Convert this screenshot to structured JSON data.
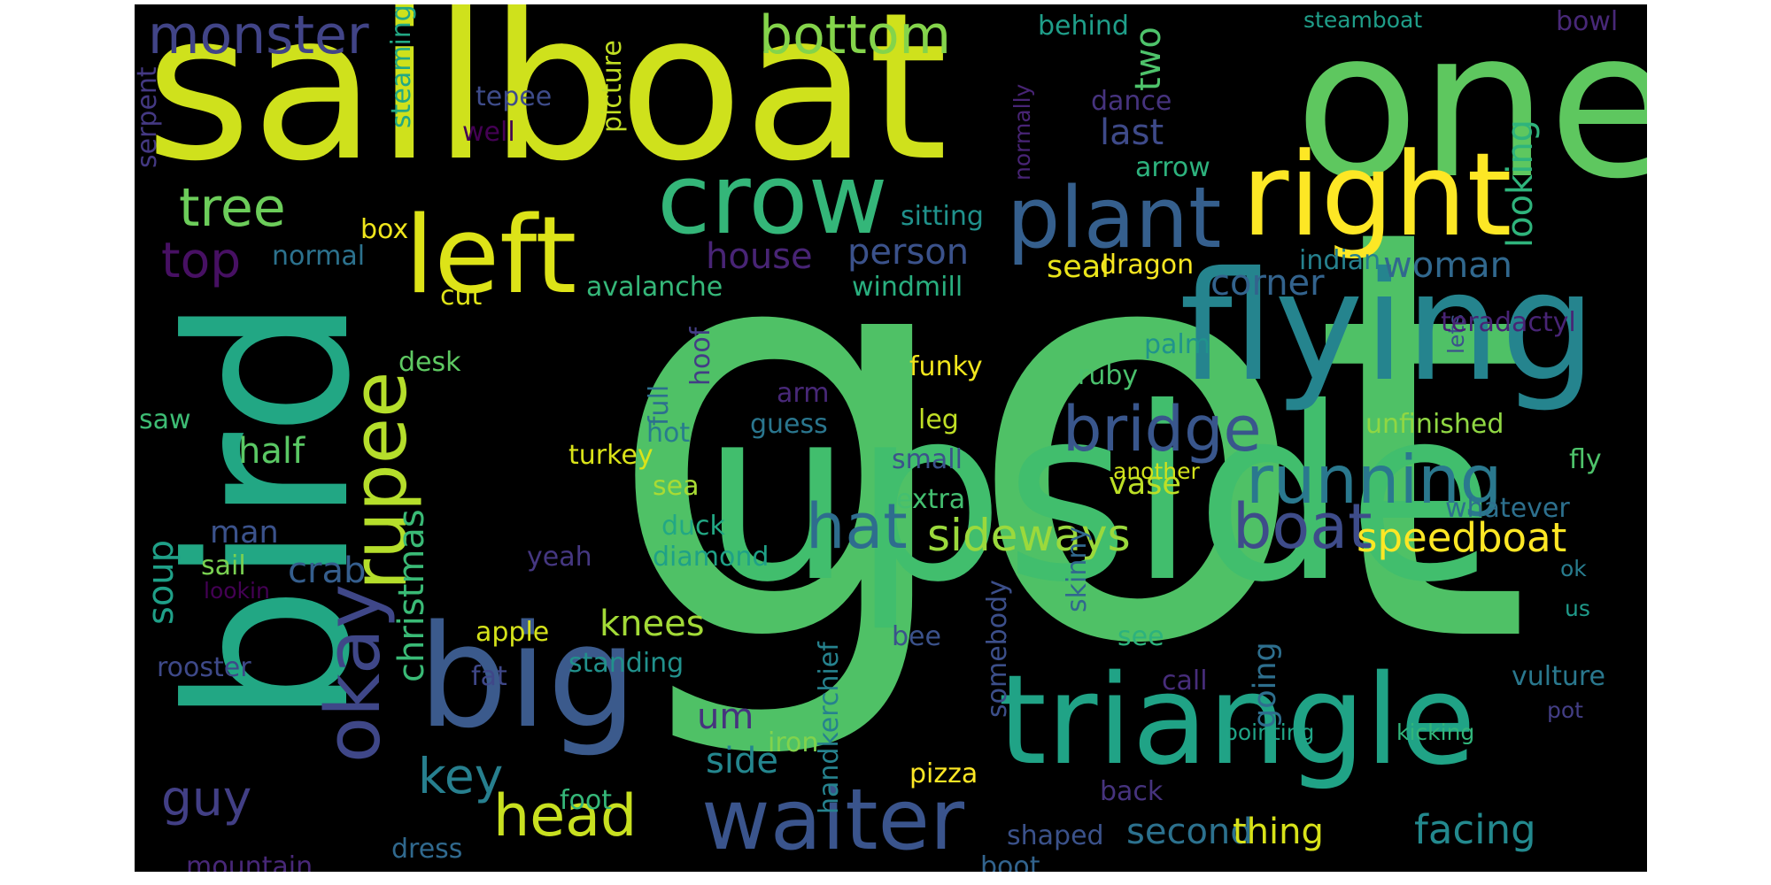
{
  "words": [
    {
      "text": "got",
      "color": "#4fc166"
    },
    {
      "text": "upside",
      "color": "#41be6d"
    },
    {
      "text": "sailboat",
      "color": "#cfe11c"
    },
    {
      "text": "one",
      "color": "#5ec75f"
    },
    {
      "text": "bird",
      "color": "#22a784"
    },
    {
      "text": "big",
      "color": "#3b5a8c"
    },
    {
      "text": "triangle",
      "color": "#20a386"
    },
    {
      "text": "flying",
      "color": "#25848e"
    },
    {
      "text": "crow",
      "color": "#34b679"
    },
    {
      "text": "right",
      "color": "#fde725"
    },
    {
      "text": "left",
      "color": "#dde318"
    },
    {
      "text": "plant",
      "color": "#355f8d"
    },
    {
      "text": "waiter",
      "color": "#3a548c"
    },
    {
      "text": "okay",
      "color": "#3f4788"
    },
    {
      "text": "rupee",
      "color": "#b5de2b"
    },
    {
      "text": "running",
      "color": "#2a788e"
    },
    {
      "text": "bridge",
      "color": "#39568c"
    },
    {
      "text": "boat",
      "color": "#3e4c8a"
    },
    {
      "text": "hat",
      "color": "#2e6d8e"
    },
    {
      "text": "head",
      "color": "#c8e020"
    },
    {
      "text": "monster",
      "color": "#414487"
    },
    {
      "text": "bottom",
      "color": "#84d44b"
    },
    {
      "text": "tree",
      "color": "#6ccd5a"
    },
    {
      "text": "top",
      "color": "#471063"
    },
    {
      "text": "sideways",
      "color": "#9bd93c"
    },
    {
      "text": "speedboat",
      "color": "#fde725"
    },
    {
      "text": "key",
      "color": "#277f8e"
    },
    {
      "text": "guy",
      "color": "#423f85"
    },
    {
      "text": "facing",
      "color": "#23898e"
    },
    {
      "text": "second",
      "color": "#2c718e"
    },
    {
      "text": "thing",
      "color": "#d8e219"
    },
    {
      "text": "person",
      "color": "#3b528b"
    },
    {
      "text": "house",
      "color": "#482475"
    },
    {
      "text": "woman",
      "color": "#31688e"
    },
    {
      "text": "corner",
      "color": "#33638d"
    },
    {
      "text": "knees",
      "color": "#a2da37"
    },
    {
      "text": "vase",
      "color": "#bddf26"
    },
    {
      "text": "half",
      "color": "#5ac864"
    },
    {
      "text": "crab",
      "color": "#355e8d"
    },
    {
      "text": "christmas",
      "color": "#3aba76"
    },
    {
      "text": "soup",
      "color": "#1fa088"
    },
    {
      "text": "um",
      "color": "#46337e"
    },
    {
      "text": "side",
      "color": "#24868e"
    },
    {
      "text": "man",
      "color": "#3b528b"
    },
    {
      "text": "seal",
      "color": "#eae51a"
    },
    {
      "text": "looking",
      "color": "#2fb47c"
    },
    {
      "text": "two",
      "color": "#4ec36b"
    },
    {
      "text": "last",
      "color": "#3e4a89"
    },
    {
      "text": "going",
      "color": "#2e6f8e"
    },
    {
      "text": "unfinished",
      "color": "#90d743"
    },
    {
      "text": "funky",
      "color": "#f1e51d"
    },
    {
      "text": "dragon",
      "color": "#f8e621"
    },
    {
      "text": "windmill",
      "color": "#29af7f"
    },
    {
      "text": "avalanche",
      "color": "#35b779"
    },
    {
      "text": "normal",
      "color": "#2c728e"
    },
    {
      "text": "box",
      "color": "#efe51c"
    },
    {
      "text": "cut",
      "color": "#dfe318"
    },
    {
      "text": "desk",
      "color": "#5ec962"
    },
    {
      "text": "saw",
      "color": "#3dbc74"
    },
    {
      "text": "turkey",
      "color": "#dae319"
    },
    {
      "text": "hot",
      "color": "#287c8e"
    },
    {
      "text": "full",
      "color": "#2d708e"
    },
    {
      "text": "hoof",
      "color": "#433e85"
    },
    {
      "text": "guess",
      "color": "#2a768e"
    },
    {
      "text": "arm",
      "color": "#482878"
    },
    {
      "text": "leg",
      "color": "#c0df25"
    },
    {
      "text": "small",
      "color": "#3b528b"
    },
    {
      "text": "extra",
      "color": "#44bf70"
    },
    {
      "text": "sea",
      "color": "#a8db34"
    },
    {
      "text": "duck",
      "color": "#22a884"
    },
    {
      "text": "diamond",
      "color": "#1fa187"
    },
    {
      "text": "yeah",
      "color": "#453781"
    },
    {
      "text": "sail",
      "color": "#7ad151"
    },
    {
      "text": "lookin",
      "color": "#440154"
    },
    {
      "text": "apple",
      "color": "#d5e21a"
    },
    {
      "text": "rooster",
      "color": "#3e4989"
    },
    {
      "text": "standing",
      "color": "#21918c"
    },
    {
      "text": "fat",
      "color": "#3f4788"
    },
    {
      "text": "bee",
      "color": "#3b528b"
    },
    {
      "text": "call",
      "color": "#472d7b"
    },
    {
      "text": "see",
      "color": "#2db27d"
    },
    {
      "text": "vulture",
      "color": "#2a788e"
    },
    {
      "text": "pot",
      "color": "#433e85"
    },
    {
      "text": "kicking",
      "color": "#31b57b"
    },
    {
      "text": "pointing",
      "color": "#20a486"
    },
    {
      "text": "pizza",
      "color": "#fde725"
    },
    {
      "text": "iron",
      "color": "#81d34d"
    },
    {
      "text": "handkerchief",
      "color": "#26828e"
    },
    {
      "text": "foot",
      "color": "#35b779"
    },
    {
      "text": "back",
      "color": "#46337e"
    },
    {
      "text": "shaped",
      "color": "#3b528b"
    },
    {
      "text": "boot",
      "color": "#32648e"
    },
    {
      "text": "dress",
      "color": "#30698e"
    },
    {
      "text": "mountain",
      "color": "#482878"
    },
    {
      "text": "somebody",
      "color": "#3c4f8a"
    },
    {
      "text": "skinny",
      "color": "#31688e"
    },
    {
      "text": "ruby",
      "color": "#4ac16d"
    },
    {
      "text": "palm",
      "color": "#20938c"
    },
    {
      "text": "whatever",
      "color": "#2d708e"
    },
    {
      "text": "fly",
      "color": "#4ec36b"
    },
    {
      "text": "another",
      "color": "#d2e21b"
    },
    {
      "text": "ok",
      "color": "#287c8e"
    },
    {
      "text": "us",
      "color": "#1f9a8a"
    },
    {
      "text": "lets",
      "color": "#3b528b"
    },
    {
      "text": "teradactyl",
      "color": "#482475"
    },
    {
      "text": "indian",
      "color": "#26818e"
    },
    {
      "text": "arrow",
      "color": "#2db27d"
    },
    {
      "text": "dance",
      "color": "#46337e"
    },
    {
      "text": "normally",
      "color": "#482475"
    },
    {
      "text": "sitting",
      "color": "#20928c"
    },
    {
      "text": "behind",
      "color": "#1f9e89"
    },
    {
      "text": "steamboat",
      "color": "#1f9e89"
    },
    {
      "text": "bowl",
      "color": "#482878"
    },
    {
      "text": "picture",
      "color": "#c2df23"
    },
    {
      "text": "tepee",
      "color": "#3e4c8a"
    },
    {
      "text": "well",
      "color": "#440154"
    },
    {
      "text": "steaming",
      "color": "#22a884"
    },
    {
      "text": "serpent",
      "color": "#443983"
    }
  ]
}
